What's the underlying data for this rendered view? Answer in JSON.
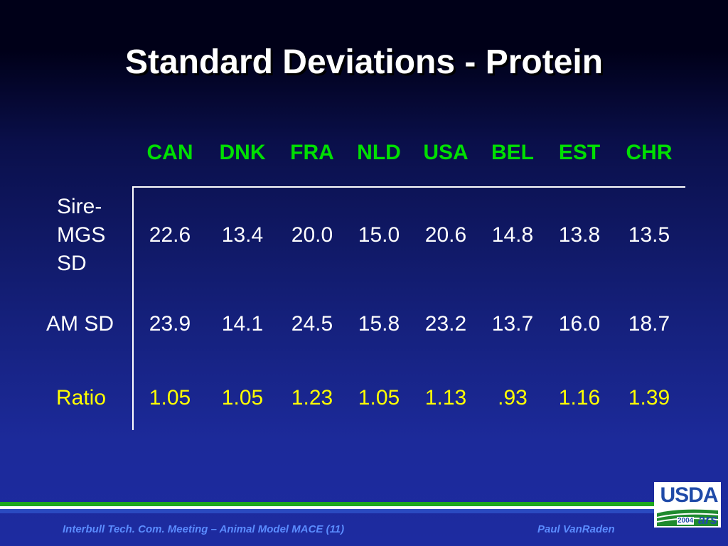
{
  "slide": {
    "title": "Standard Deviations - Protein",
    "columns": [
      "CAN",
      "DNK",
      "FRA",
      "NLD",
      "USA",
      "BEL",
      "EST",
      "CHR"
    ],
    "rows": [
      {
        "label_lines": [
          "Sire-",
          "MGS",
          "SD"
        ],
        "values": [
          "22.6",
          "13.4",
          "20.0",
          "15.0",
          "20.6",
          "14.8",
          "13.8",
          "13.5"
        ]
      },
      {
        "label": "AM SD",
        "values": [
          "23.9",
          "14.1",
          "24.5",
          "15.8",
          "23.2",
          "13.7",
          "16.0",
          "18.7"
        ]
      },
      {
        "label": "Ratio",
        "values": [
          "1.05",
          "1.05",
          "1.23",
          "1.05",
          "1.13",
          ".93",
          "1.16",
          "1.39"
        ]
      }
    ]
  },
  "footer": {
    "left": "Interbull Tech. Com. Meeting – Animal Model MACE (11)",
    "right": "Paul VanRaden"
  },
  "logo": {
    "text": "USDA",
    "year": "2004",
    "mark": "ars"
  },
  "colors": {
    "header": "#00e000",
    "ratio": "#ffff00",
    "text": "#ffffff",
    "footer": "#5b8cff",
    "stripe_green": "#1ea81e"
  }
}
